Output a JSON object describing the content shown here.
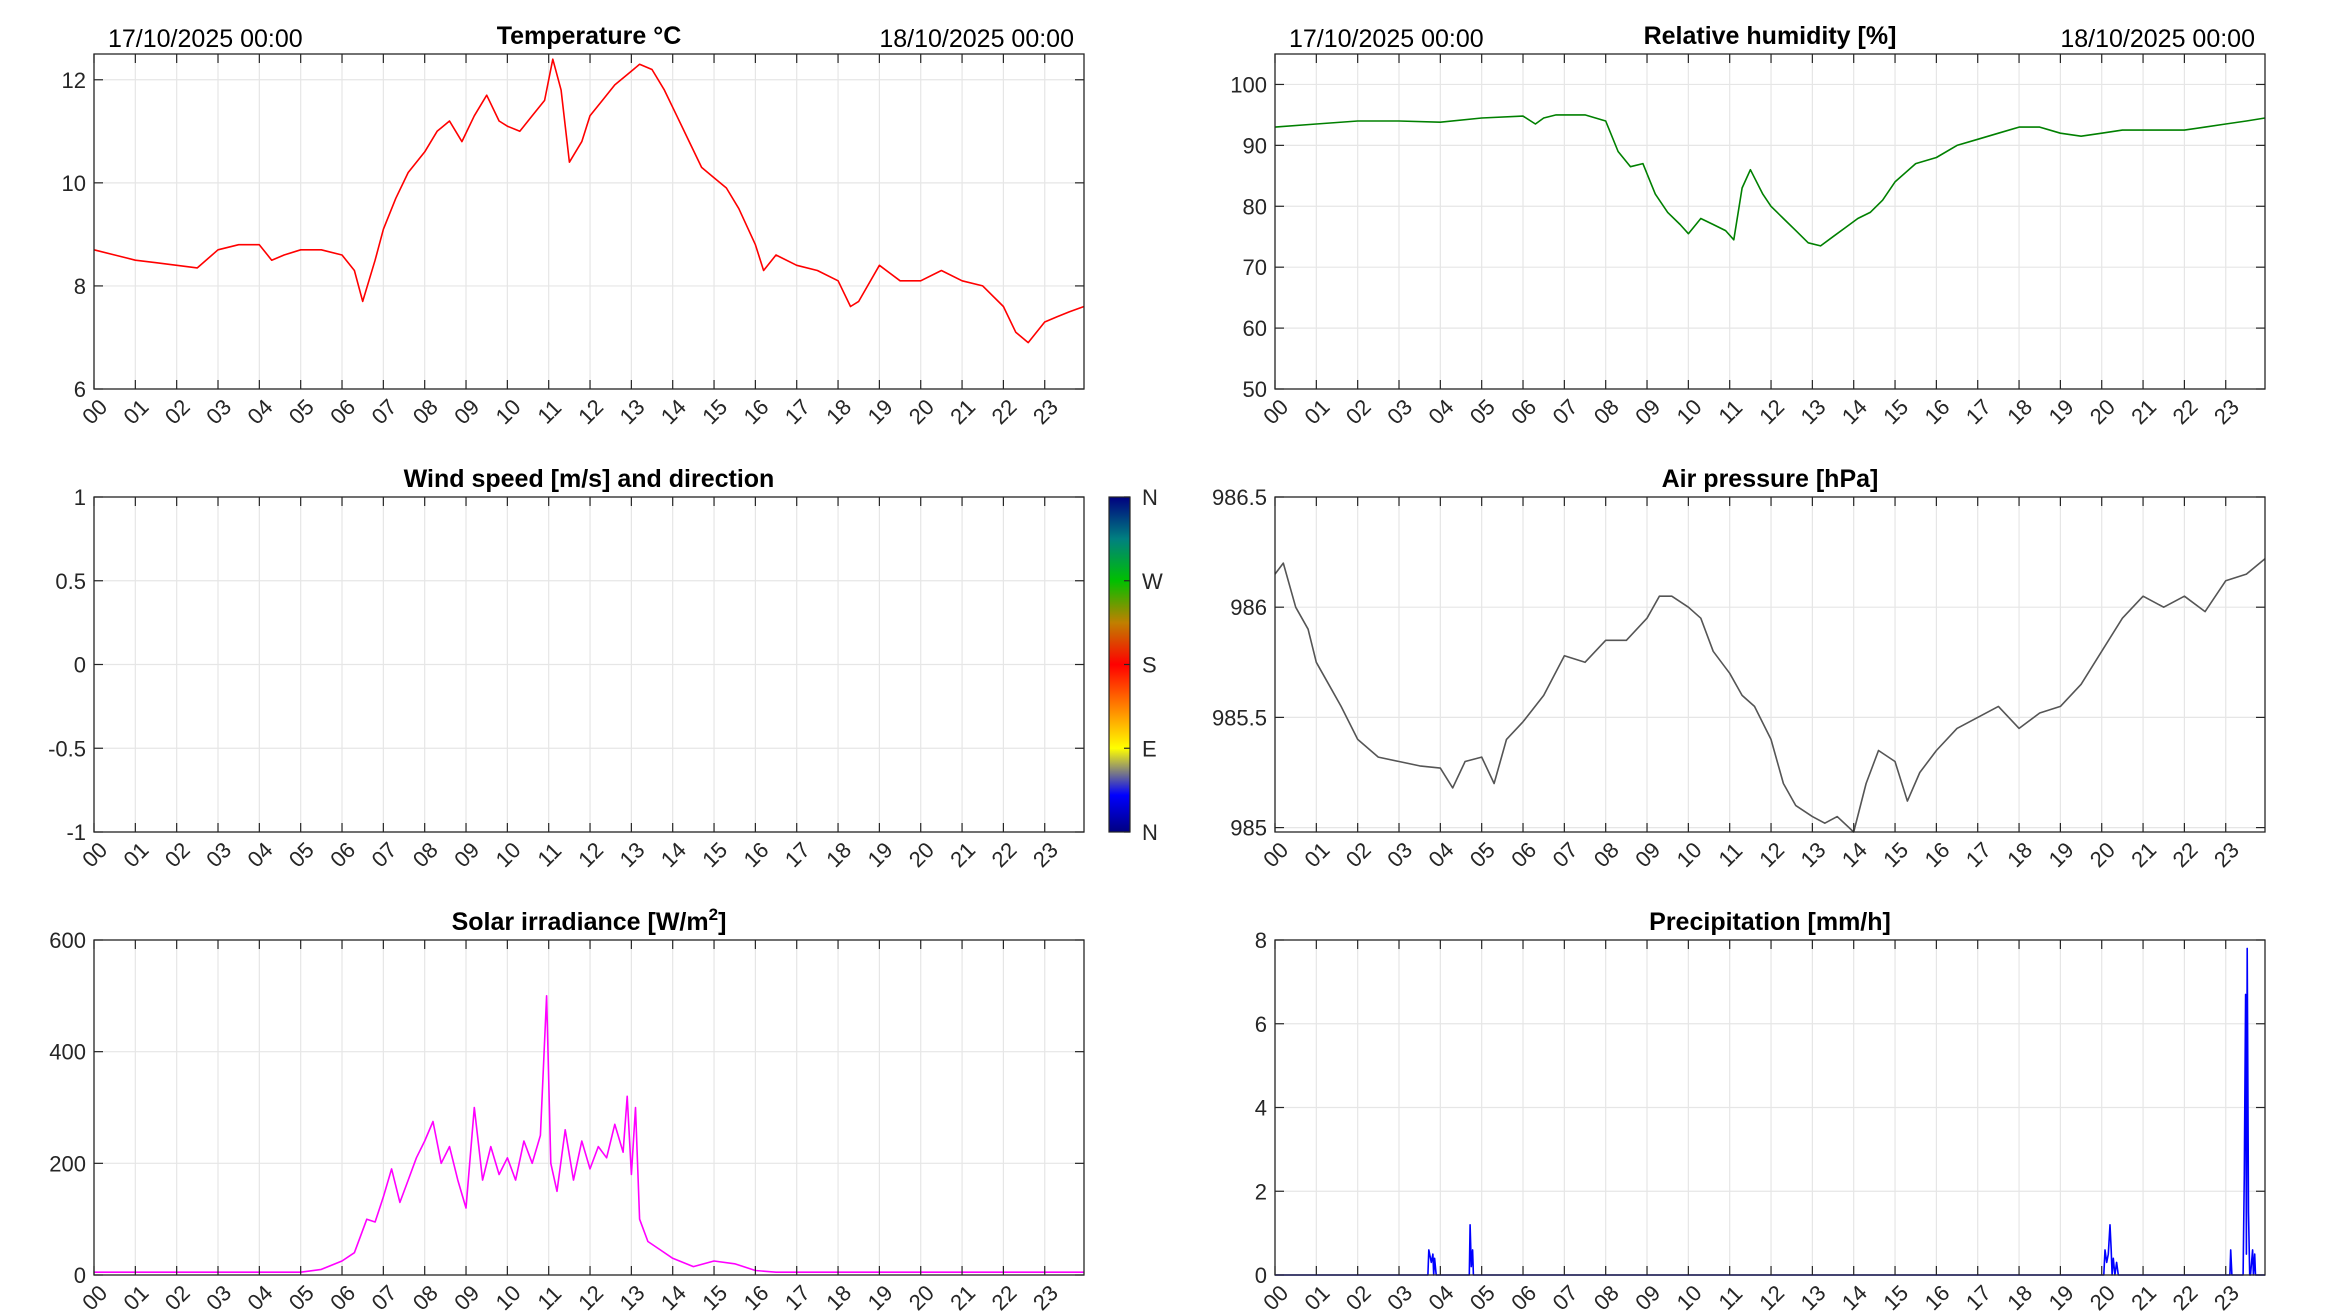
{
  "chart_data": [
    {
      "type": "line",
      "title": "Temperature °C",
      "date_left": "17/10/2025 00:00",
      "date_right": "18/10/2025 00:00",
      "xlim": [
        0,
        23.95
      ],
      "ylim": [
        6,
        12.5
      ],
      "yticks": [
        6,
        8,
        10,
        12
      ],
      "ytick_labels": [
        "6",
        "8",
        "10",
        "12"
      ],
      "xtick_labels": [
        "00",
        "01",
        "02",
        "03",
        "04",
        "05",
        "06",
        "07",
        "08",
        "09",
        "10",
        "11",
        "12",
        "13",
        "14",
        "15",
        "16",
        "17",
        "18",
        "19",
        "20",
        "21",
        "22",
        "23"
      ],
      "grid": true,
      "color": "#ff0000",
      "x": [
        0,
        0.5,
        1,
        1.5,
        2,
        2.5,
        3,
        3.5,
        4,
        4.3,
        4.6,
        5,
        5.5,
        6,
        6.3,
        6.5,
        6.8,
        7,
        7.3,
        7.6,
        8,
        8.3,
        8.6,
        8.9,
        9.2,
        9.5,
        9.8,
        10,
        10.3,
        10.6,
        10.9,
        11.1,
        11.3,
        11.5,
        11.8,
        12,
        12.3,
        12.6,
        12.9,
        13.2,
        13.5,
        13.8,
        14.1,
        14.4,
        14.7,
        15,
        15.3,
        15.6,
        16,
        16.2,
        16.5,
        17,
        17.5,
        18,
        18.3,
        18.5,
        19,
        19.5,
        20,
        20.5,
        21,
        21.5,
        22,
        22.3,
        22.6,
        23,
        23.3,
        23.6,
        23.95
      ],
      "y": [
        8.7,
        8.6,
        8.5,
        8.45,
        8.4,
        8.35,
        8.7,
        8.8,
        8.8,
        8.5,
        8.6,
        8.7,
        8.7,
        8.6,
        8.3,
        7.7,
        8.5,
        9.1,
        9.7,
        10.2,
        10.6,
        11,
        11.2,
        10.8,
        11.3,
        11.7,
        11.2,
        11.1,
        11.0,
        11.3,
        11.6,
        12.4,
        11.8,
        10.4,
        10.8,
        11.3,
        11.6,
        11.9,
        12.1,
        12.3,
        12.2,
        11.8,
        11.3,
        10.8,
        10.3,
        10.1,
        9.9,
        9.5,
        8.8,
        8.3,
        8.6,
        8.4,
        8.3,
        8.1,
        7.6,
        7.7,
        8.4,
        8.1,
        8.1,
        8.3,
        8.1,
        8.0,
        7.6,
        7.1,
        6.9,
        7.3,
        7.4,
        7.5,
        7.6
      ]
    },
    {
      "type": "line",
      "title": "Relative humidity [%]",
      "date_left": "17/10/2025 00:00",
      "date_right": "18/10/2025 00:00",
      "xlim": [
        0,
        23.95
      ],
      "ylim": [
        50,
        105
      ],
      "yticks": [
        50,
        60,
        70,
        80,
        90,
        100
      ],
      "ytick_labels": [
        "50",
        "60",
        "70",
        "80",
        "90",
        "100"
      ],
      "xtick_labels": [
        "00",
        "01",
        "02",
        "03",
        "04",
        "05",
        "06",
        "07",
        "08",
        "09",
        "10",
        "11",
        "12",
        "13",
        "14",
        "15",
        "16",
        "17",
        "18",
        "19",
        "20",
        "21",
        "22",
        "23"
      ],
      "grid": true,
      "color": "#008000",
      "x": [
        0,
        1,
        2,
        3,
        4,
        5,
        6,
        6.3,
        6.5,
        6.8,
        7,
        7.5,
        8,
        8.3,
        8.6,
        8.9,
        9.2,
        9.5,
        9.8,
        10,
        10.3,
        10.6,
        10.9,
        11.1,
        11.3,
        11.5,
        11.8,
        12,
        12.3,
        12.6,
        12.9,
        13.2,
        13.5,
        13.8,
        14.1,
        14.4,
        14.7,
        15,
        15.5,
        16,
        16.5,
        17,
        17.5,
        18,
        18.5,
        19,
        19.5,
        20,
        20.5,
        21,
        21.5,
        22,
        22.5,
        23,
        23.5,
        23.95
      ],
      "y": [
        93,
        93.5,
        94,
        94,
        93.8,
        94.5,
        94.8,
        93.5,
        94.5,
        95,
        95,
        95,
        94,
        89,
        86.5,
        87,
        82,
        79,
        77,
        75.5,
        78,
        77,
        76,
        74.5,
        83,
        86,
        82,
        80,
        78,
        76,
        74,
        73.5,
        75,
        76.5,
        78,
        79,
        81,
        84,
        87,
        88,
        90,
        91,
        92,
        93,
        93,
        92,
        91.5,
        92,
        92.5,
        92.5,
        92.5,
        92.5,
        93,
        93.5,
        94,
        94.5
      ]
    },
    {
      "type": "line",
      "title": "Wind speed [m/s] and direction",
      "xlim": [
        0,
        23.95
      ],
      "ylim": [
        -1,
        1
      ],
      "yticks": [
        -1,
        -0.5,
        0,
        0.5,
        1
      ],
      "ytick_labels": [
        "-1",
        "-0.5",
        "0",
        "0.5",
        "1"
      ],
      "xtick_labels": [
        "00",
        "01",
        "02",
        "03",
        "04",
        "05",
        "06",
        "07",
        "08",
        "09",
        "10",
        "11",
        "12",
        "13",
        "14",
        "15",
        "16",
        "17",
        "18",
        "19",
        "20",
        "21",
        "22",
        "23"
      ],
      "grid": true,
      "colorbar_labels": [
        "N",
        "W",
        "S",
        "E",
        "N"
      ],
      "x": [],
      "y": []
    },
    {
      "type": "line",
      "title": "Air pressure [hPa]",
      "xlim": [
        0,
        23.95
      ],
      "ylim": [
        984.98,
        986.5
      ],
      "yticks": [
        985,
        985.5,
        986,
        986.5
      ],
      "ytick_labels": [
        "985",
        "985.5",
        "986",
        "986.5"
      ],
      "xtick_labels": [
        "00",
        "01",
        "02",
        "03",
        "04",
        "05",
        "06",
        "07",
        "08",
        "09",
        "10",
        "11",
        "12",
        "13",
        "14",
        "15",
        "16",
        "17",
        "18",
        "19",
        "20",
        "21",
        "22",
        "23"
      ],
      "grid": true,
      "color": "#555555",
      "x": [
        0,
        0.2,
        0.5,
        0.8,
        1,
        1.3,
        1.6,
        2,
        2.5,
        3,
        3.5,
        4,
        4.3,
        4.6,
        5,
        5.3,
        5.6,
        6,
        6.5,
        7,
        7.5,
        8,
        8.5,
        9,
        9.3,
        9.6,
        10,
        10.3,
        10.6,
        11,
        11.3,
        11.6,
        12,
        12.3,
        12.6,
        13,
        13.3,
        13.6,
        14,
        14.3,
        14.6,
        15,
        15.3,
        15.6,
        16,
        16.5,
        17,
        17.5,
        18,
        18.5,
        19,
        19.5,
        20,
        20.5,
        21,
        21.5,
        22,
        22.5,
        23,
        23.5,
        23.95
      ],
      "y": [
        986.15,
        986.2,
        986,
        985.9,
        985.75,
        985.65,
        985.55,
        985.4,
        985.32,
        985.3,
        985.28,
        985.27,
        985.18,
        985.3,
        985.32,
        985.2,
        985.4,
        985.48,
        985.6,
        985.78,
        985.75,
        985.85,
        985.85,
        985.95,
        986.05,
        986.05,
        986.0,
        985.95,
        985.8,
        985.7,
        985.6,
        985.55,
        985.4,
        985.2,
        985.1,
        985.05,
        985.02,
        985.05,
        984.98,
        985.2,
        985.35,
        985.3,
        985.12,
        985.25,
        985.35,
        985.45,
        985.5,
        985.55,
        985.45,
        985.52,
        985.55,
        985.65,
        985.8,
        985.95,
        986.05,
        986.0,
        986.05,
        985.98,
        986.12,
        986.15,
        986.22
      ]
    },
    {
      "type": "line",
      "title": "Solar irradiance [W/m",
      "title_sup": "2",
      "title_tail": "]",
      "xlim": [
        0,
        23.95
      ],
      "ylim": [
        0,
        600
      ],
      "yticks": [
        0,
        200,
        400,
        600
      ],
      "ytick_labels": [
        "0",
        "200",
        "400",
        "600"
      ],
      "xtick_labels": [
        "00",
        "01",
        "02",
        "03",
        "04",
        "05",
        "06",
        "07",
        "08",
        "09",
        "10",
        "11",
        "12",
        "13",
        "14",
        "15",
        "16",
        "17",
        "18",
        "19",
        "20",
        "21",
        "22",
        "23"
      ],
      "grid": true,
      "color": "#ff00ff",
      "x": [
        0,
        3,
        5,
        5.5,
        6,
        6.3,
        6.6,
        6.8,
        7,
        7.2,
        7.4,
        7.6,
        7.8,
        8,
        8.2,
        8.4,
        8.6,
        8.8,
        9,
        9.2,
        9.4,
        9.6,
        9.8,
        10,
        10.2,
        10.4,
        10.6,
        10.8,
        10.95,
        11.05,
        11.2,
        11.4,
        11.6,
        11.8,
        12,
        12.2,
        12.4,
        12.6,
        12.8,
        12.9,
        13,
        13.1,
        13.2,
        13.4,
        13.7,
        14,
        14.5,
        15,
        15.5,
        16,
        16.5,
        20,
        23.95
      ],
      "y": [
        5,
        5,
        5,
        10,
        25,
        40,
        100,
        95,
        140,
        190,
        130,
        170,
        210,
        240,
        275,
        200,
        230,
        170,
        120,
        300,
        170,
        230,
        180,
        210,
        170,
        240,
        200,
        250,
        500,
        200,
        150,
        260,
        170,
        240,
        190,
        230,
        210,
        270,
        220,
        320,
        180,
        300,
        100,
        60,
        45,
        30,
        15,
        25,
        20,
        8,
        5,
        5,
        5
      ]
    },
    {
      "type": "line",
      "title": "Precipitation [mm/h]",
      "xlim": [
        0,
        23.95
      ],
      "ylim": [
        0,
        8
      ],
      "yticks": [
        0,
        2,
        4,
        6,
        8
      ],
      "ytick_labels": [
        "0",
        "2",
        "4",
        "6",
        "8"
      ],
      "xtick_labels": [
        "00",
        "01",
        "02",
        "03",
        "04",
        "05",
        "06",
        "07",
        "08",
        "09",
        "10",
        "11",
        "12",
        "13",
        "14",
        "15",
        "16",
        "17",
        "18",
        "19",
        "20",
        "21",
        "22",
        "23"
      ],
      "grid": true,
      "color": "#0000ff",
      "x": [
        0,
        3.7,
        3.72,
        3.78,
        3.82,
        3.84,
        3.86,
        3.9,
        3.92,
        4,
        4.7,
        4.72,
        4.75,
        4.78,
        4.8,
        20.05,
        20.08,
        20.12,
        20.16,
        20.2,
        20.23,
        20.25,
        20.28,
        20.32,
        20.36,
        20.4,
        23.1,
        23.12,
        23.15,
        23.4,
        23.42,
        23.45,
        23.48,
        23.5,
        23.52,
        23.55,
        23.58,
        23.6,
        23.65,
        23.67,
        23.7,
        23.72,
        23.74,
        23.95
      ],
      "y": [
        0,
        0,
        0.6,
        0.3,
        0.5,
        0,
        0.4,
        0,
        0,
        0,
        0,
        1.2,
        0.2,
        0.6,
        0,
        0,
        0.6,
        0.3,
        0.5,
        1.2,
        0.6,
        0,
        0.4,
        0,
        0.3,
        0,
        0,
        0.6,
        0,
        0,
        0,
        2.4,
        6.7,
        0.5,
        7.8,
        1.5,
        0,
        0,
        0.6,
        0,
        0.5,
        0,
        0,
        0
      ]
    }
  ]
}
